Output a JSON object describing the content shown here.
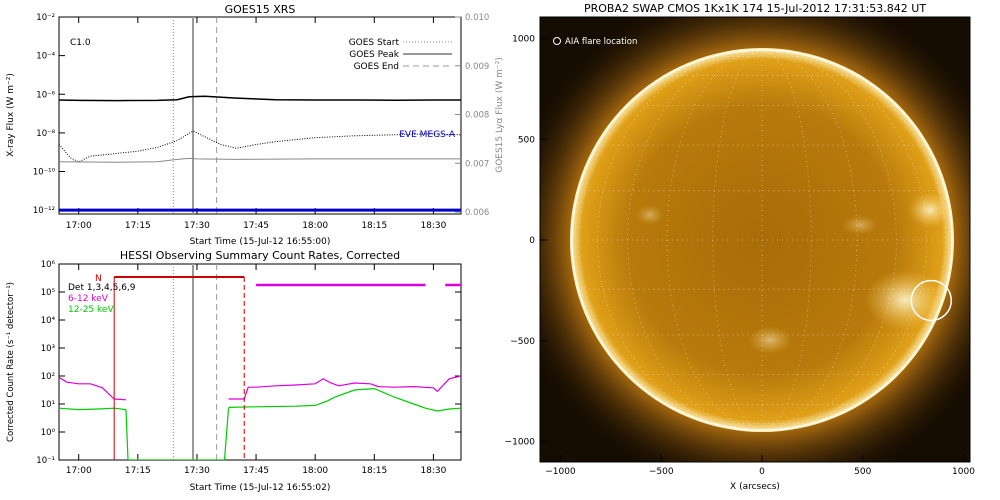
{
  "chart_data": [
    {
      "type": "line",
      "title": "GOES15 XRS",
      "flare_class": "C1.0",
      "xlabel": "Start Time (15-Jul-12 16:55:00)",
      "ylabel": "X-ray Flux (W m⁻²)",
      "ylabel_right": "GOES15 Lyα Flux (W m⁻²)",
      "x_ticks": [
        "17:00",
        "17:15",
        "17:30",
        "17:45",
        "18:00",
        "18:15",
        "18:30"
      ],
      "x_tick_minutes": [
        0,
        15,
        30,
        45,
        60,
        75,
        90
      ],
      "xlim_minutes": [
        -5,
        97
      ],
      "y_ticks": [
        "10⁻²",
        "10⁻⁴",
        "10⁻⁶",
        "10⁻⁸",
        "10⁻¹⁰",
        "10⁻¹²"
      ],
      "y_tick_exponents": [
        -2,
        -4,
        -6,
        -8,
        -10,
        -12
      ],
      "ylim_log": [
        -12.2,
        -2
      ],
      "y_right_ticks": [
        "0.010",
        "0.009",
        "0.008",
        "0.007",
        "0.006"
      ],
      "y_right_values": [
        0.01,
        0.009,
        0.008,
        0.007,
        0.006
      ],
      "ylim_right": [
        0.00596,
        0.01
      ],
      "legend": [
        {
          "label": "GOES Start",
          "style": "dotted"
        },
        {
          "label": "GOES Peak",
          "style": "solid"
        },
        {
          "label": "GOES End",
          "style": "dashed"
        }
      ],
      "annotation": "EVE MEGS-A",
      "markers_minutes": {
        "start": 24,
        "peak": 29,
        "end": 35
      },
      "series": [
        {
          "key": "long",
          "color": "#000000",
          "x": [
            -5,
            0,
            10,
            20,
            25,
            28,
            32,
            40,
            50,
            60,
            70,
            80,
            90,
            97
          ],
          "y_log": [
            -6.3,
            -6.32,
            -6.33,
            -6.32,
            -6.28,
            -6.13,
            -6.1,
            -6.2,
            -6.28,
            -6.3,
            -6.3,
            -6.31,
            -6.3,
            -6.3
          ]
        },
        {
          "key": "short",
          "color": "#000000",
          "dotted": true,
          "x": [
            -5,
            -2,
            0,
            3,
            8,
            15,
            20,
            25,
            29,
            32,
            36,
            40,
            45,
            50,
            60,
            70,
            80,
            90,
            97
          ],
          "y_log": [
            -8.6,
            -9.3,
            -9.5,
            -9.2,
            -9.1,
            -8.95,
            -8.75,
            -8.4,
            -7.9,
            -8.2,
            -8.6,
            -8.8,
            -8.6,
            -8.45,
            -8.25,
            -8.15,
            -8.1,
            -8.05,
            -8.1
          ]
        },
        {
          "key": "lya",
          "color": "#888888",
          "x": [
            -5,
            10,
            20,
            25,
            28,
            30,
            40,
            60,
            80,
            97
          ],
          "y": [
            0.00703,
            0.00702,
            0.00703,
            0.00708,
            0.0071,
            0.00709,
            0.00708,
            0.00709,
            0.00709,
            0.00709
          ]
        },
        {
          "key": "eve",
          "color": "#0000cc",
          "x": [
            -5,
            97
          ],
          "y_log": [
            -12.0,
            -12.0
          ]
        }
      ]
    },
    {
      "type": "line",
      "title": "HESSI Observing Summary Count Rates, Corrected",
      "xlabel": "Start Time (15-Jul-12 16:55:02)",
      "ylabel": "Corrected Count Rate (s⁻¹ detector⁻¹)",
      "x_ticks": [
        "17:00",
        "17:15",
        "17:30",
        "17:45",
        "18:00",
        "18:15",
        "18:30"
      ],
      "x_tick_minutes": [
        0,
        15,
        30,
        45,
        60,
        75,
        90
      ],
      "xlim_minutes": [
        -5,
        97
      ],
      "y_ticks": [
        "10⁶",
        "10⁵",
        "10⁴",
        "10³",
        "10²",
        "10¹",
        "10⁰",
        "10⁻¹"
      ],
      "y_tick_exponents": [
        6,
        5,
        4,
        3,
        2,
        1,
        0,
        -1
      ],
      "ylim_log": [
        -1,
        6
      ],
      "legend": [
        {
          "label": "Det 1,3,4,5,6,9",
          "color": "#000000"
        },
        {
          "label": "6-12 keV",
          "color": "#dd00dd"
        },
        {
          "label": "12-25 keV",
          "color": "#00cc00"
        }
      ],
      "night_label": "N",
      "night_minutes": [
        9,
        42
      ],
      "markers_minutes": {
        "start": 24,
        "peak": 29,
        "end": 35
      },
      "series": [
        {
          "key": "6-12",
          "color": "#dd00dd",
          "segments": [
            {
              "x": [
                -5,
                -3,
                0,
                3,
                6,
                9,
                12
              ],
              "y_log": [
                1.95,
                1.78,
                1.72,
                1.72,
                1.58,
                1.18,
                1.15
              ]
            },
            {
              "x": [
                38,
                42,
                43,
                45,
                50,
                55,
                60,
                62,
                64,
                66,
                70,
                74,
                76,
                80,
                85,
                90,
                91,
                94,
                97
              ],
              "y_log": [
                1.18,
                1.18,
                1.6,
                1.6,
                1.65,
                1.68,
                1.72,
                1.9,
                1.75,
                1.65,
                1.75,
                1.72,
                1.62,
                1.6,
                1.62,
                1.58,
                1.45,
                1.9,
                2.0
              ]
            },
            {
              "x": [
                45,
                88
              ],
              "y_log": [
                5.25,
                5.25
              ]
            },
            {
              "x": [
                93,
                97
              ],
              "y_log": [
                5.25,
                5.25
              ]
            }
          ]
        },
        {
          "key": "12-25",
          "color": "#00cc00",
          "segments": [
            {
              "x": [
                -5,
                0,
                5,
                9,
                12
              ],
              "y_log": [
                0.85,
                0.8,
                0.82,
                0.85,
                0.8
              ]
            },
            {
              "x": [
                12,
                12.5
              ],
              "y_log": [
                0.8,
                -1
              ]
            },
            {
              "x": [
                12.5,
                37
              ],
              "y_log": [
                -1,
                -1
              ]
            },
            {
              "x": [
                37,
                38
              ],
              "y_log": [
                -1,
                0.85
              ]
            },
            {
              "x": [
                38,
                45,
                55,
                60,
                63,
                65,
                70,
                75,
                80,
                85,
                88,
                91,
                94,
                97
              ],
              "y_log": [
                0.88,
                0.9,
                0.92,
                0.95,
                1.1,
                1.25,
                1.5,
                1.55,
                1.25,
                1.0,
                0.85,
                0.75,
                0.82,
                0.85
              ]
            }
          ]
        }
      ]
    }
  ],
  "image_panel": {
    "title": "PROBA2 SWAP CMOS 1Kx1K 174 15-Jul-2012 17:31:53.842 UT",
    "legend_label": "AIA flare location",
    "xlabel": "X (arcsecs)",
    "x_ticks": [
      "−1000",
      "−500",
      "0",
      "500",
      "1000"
    ],
    "x_tick_values": [
      -1000,
      -500,
      0,
      500,
      1000
    ],
    "y_ticks": [
      "1000",
      "500",
      "0",
      "−500",
      "−1000"
    ],
    "y_tick_values": [
      1000,
      500,
      0,
      -500,
      -1000
    ],
    "flare_location_arcsec": [
      840,
      -300
    ],
    "colors": {
      "disk": "#c88a10",
      "corona": "#f0b020",
      "background": "#150c02"
    }
  }
}
